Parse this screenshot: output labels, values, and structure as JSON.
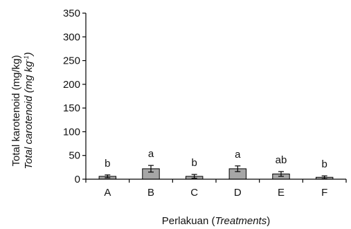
{
  "chart_data": {
    "type": "bar",
    "categories": [
      "A",
      "B",
      "C",
      "D",
      "E",
      "F"
    ],
    "values": [
      6,
      22,
      6,
      22,
      11,
      4
    ],
    "error": [
      3,
      7,
      4,
      6,
      5,
      3
    ],
    "annotations": [
      "b",
      "a",
      "b",
      "a",
      "ab",
      "b"
    ],
    "ylim": [
      0,
      350
    ],
    "yticks": [
      "0",
      "50",
      "100",
      "150",
      "200",
      "250",
      "300",
      "350"
    ],
    "ylabel_line1": "Total karotenoid (mg/kg)",
    "ylabel_line2_text": "Total carotenoid (mg kg",
    "ylabel_line2_sup": "-1",
    "ylabel_line2_close": ")",
    "xlabel_main": "Perlakuan (",
    "xlabel_italic": "Treatments",
    "xlabel_close": ")",
    "bar_color": "#a6a6a6",
    "grid": false,
    "legend": "none"
  }
}
